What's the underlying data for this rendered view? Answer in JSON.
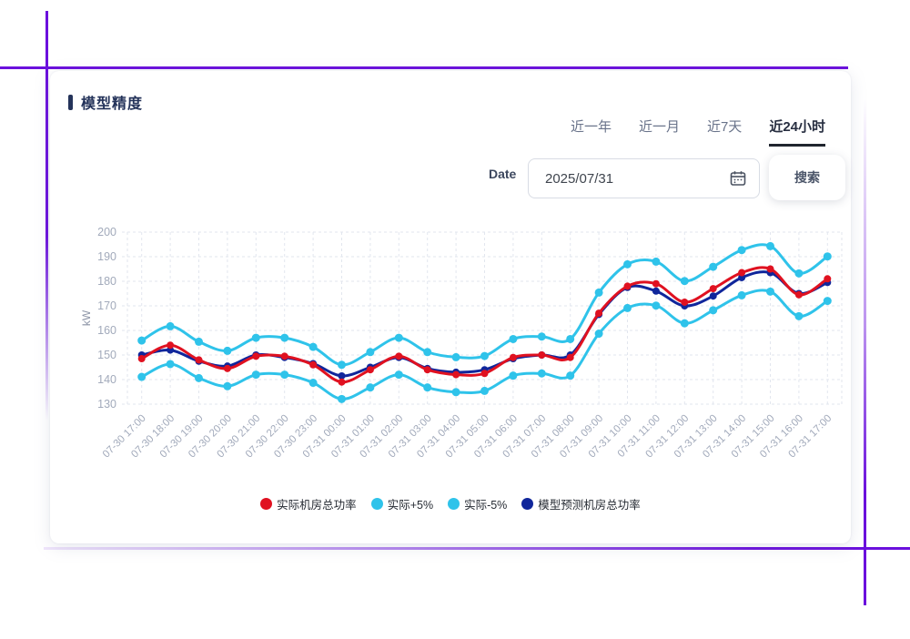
{
  "theme": {
    "accent": "#6b10dd",
    "title": "#24335a",
    "tab": "#69738a",
    "tab-active": "#272e40",
    "underline": "#20252f",
    "tick": "#a2aabb",
    "legend-text": "#262b33",
    "border": "#d8dce4"
  },
  "panel": {
    "title": "模型精度",
    "tabs": [
      {
        "label": "近一年"
      },
      {
        "label": "近一月"
      },
      {
        "label": "近7天"
      },
      {
        "label": "近24小时"
      }
    ],
    "date": {
      "label": "Date",
      "value": "2025/07/31",
      "icon": "calendar-icon"
    },
    "search_label": "搜索"
  },
  "chart_data": {
    "type": "line",
    "ylabel": "kW",
    "ylim": [
      130,
      200
    ],
    "ytick_step": 10,
    "grid": true,
    "legend_position": "bottom",
    "x": [
      "07-30 17:00",
      "07-30 18:00",
      "07-30 19:00",
      "07-30 20:00",
      "07-30 21:00",
      "07-30 22:00",
      "07-30 23:00",
      "07-31 00:00",
      "07-31 01:00",
      "07-31 02:00",
      "07-31 03:00",
      "07-31 04:00",
      "07-31 05:00",
      "07-31 06:00",
      "07-31 07:00",
      "07-31 08:00",
      "07-31 09:00",
      "07-31 10:00",
      "07-31 11:00",
      "07-31 12:00",
      "07-31 13:00",
      "07-31 14:00",
      "07-31 15:00",
      "07-31 16:00",
      "07-31 17:00"
    ],
    "series": [
      {
        "name": "实际机房总功率",
        "color": "#e01120",
        "values": [
          148.5,
          154,
          148,
          144.5,
          149.5,
          149.5,
          146,
          139,
          144,
          149.5,
          144,
          142,
          142.5,
          149,
          150,
          149,
          167,
          178,
          179,
          171.5,
          177,
          183.5,
          185,
          174.5,
          181
        ]
      },
      {
        "name": "实际+5%",
        "color": "#2fc3ea",
        "values": [
          155.9,
          161.7,
          155.4,
          151.7,
          157,
          157,
          153.3,
          146,
          151.2,
          157,
          151.2,
          149.1,
          149.6,
          156.5,
          157.5,
          156.5,
          175.4,
          186.9,
          188,
          180.1,
          185.9,
          192.7,
          194.3,
          183.2,
          190.1
        ]
      },
      {
        "name": "实际-5%",
        "color": "#2fc3ea",
        "values": [
          141.1,
          146.3,
          140.6,
          137.3,
          142,
          142,
          138.7,
          132.1,
          136.8,
          142,
          136.8,
          134.9,
          135.4,
          141.6,
          142.5,
          141.6,
          158.7,
          169.1,
          170.1,
          162.9,
          168.2,
          174.3,
          175.8,
          165.8,
          172
        ]
      },
      {
        "name": "模型预测机房总功率",
        "color": "#10269b",
        "values": [
          150,
          152,
          147.5,
          145.5,
          150,
          149,
          146.5,
          141.5,
          145,
          149,
          144.5,
          143,
          144,
          148.5,
          150,
          150,
          166.5,
          177.5,
          176,
          170,
          174,
          181.5,
          183.5,
          175,
          179.5
        ]
      }
    ]
  }
}
